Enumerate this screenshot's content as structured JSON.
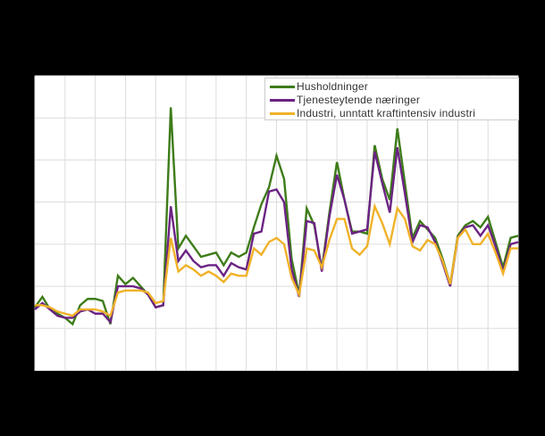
{
  "window": {
    "background_color": "#000000"
  },
  "chart_data": {
    "type": "line",
    "plot_bg_color": "#ffffff",
    "grid_color": "#dcdcdc",
    "grid": true,
    "x_axis_labels_visible": false,
    "y_axis_labels_visible": false,
    "n_points": 65,
    "x": "quarterly index 0-64 (vertical gridline every 4 points, 17 gridlines)",
    "ylim": [
      0,
      140
    ],
    "y_gridline_step": 20,
    "legend_position": "top-right-inside-plot",
    "legend_border_color": "#cccccc",
    "legend_bg_color": "#ffffff",
    "series": [
      {
        "name": "Husholdninger",
        "color": "#3e7c19",
        "values": [
          30,
          35,
          29,
          27,
          25,
          22,
          31,
          34,
          34,
          33,
          22,
          45,
          41,
          44,
          40,
          36,
          30,
          31,
          125,
          58,
          64,
          59,
          54,
          55,
          56,
          50,
          56,
          54,
          56,
          68,
          79,
          87,
          102,
          91,
          53,
          36,
          77,
          69,
          48,
          75,
          99,
          81,
          66,
          66,
          65,
          107,
          91,
          81,
          115,
          89,
          63,
          71,
          67,
          63,
          53,
          41,
          64,
          69,
          71,
          68,
          73,
          61,
          49,
          63,
          64
        ]
      },
      {
        "name": "Tjenesteytende næringer",
        "color": "#6b2383",
        "values": [
          29,
          32,
          29,
          26,
          25,
          25,
          28,
          29,
          27,
          27,
          23,
          40,
          40,
          40,
          39,
          36,
          30,
          31,
          78,
          52,
          57,
          52,
          49,
          50,
          50,
          45,
          51,
          49,
          48,
          65,
          66,
          85,
          86,
          80,
          48,
          35,
          71,
          70,
          47,
          73,
          93,
          81,
          65,
          66,
          67,
          104,
          89,
          75,
          106,
          84,
          61,
          69,
          68,
          61,
          51,
          40,
          63,
          68,
          69,
          64,
          69,
          59,
          47,
          60,
          61
        ]
      },
      {
        "name": "Industri, unntatt kraftintensiv industri",
        "color": "#f0b228",
        "values": [
          31,
          31,
          30,
          28,
          27,
          26,
          29,
          29,
          29,
          28,
          26,
          37,
          38,
          38,
          38,
          37,
          32,
          33,
          63,
          47,
          50,
          48,
          45,
          47,
          45,
          42,
          46,
          45,
          45,
          58,
          55,
          61,
          63,
          60,
          44,
          36,
          58,
          57,
          49,
          62,
          72,
          72,
          58,
          55,
          59,
          78,
          70,
          60,
          77,
          72,
          59,
          57,
          62,
          60,
          52,
          41,
          63,
          67,
          60,
          60,
          65,
          56,
          46,
          58,
          58
        ]
      }
    ]
  }
}
